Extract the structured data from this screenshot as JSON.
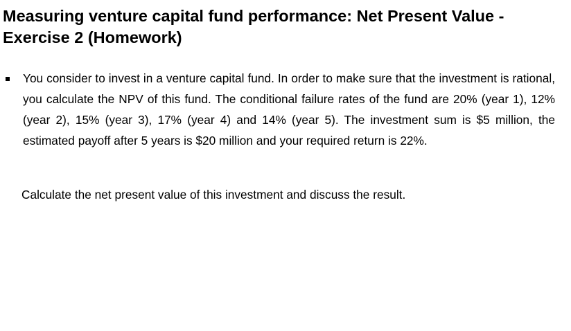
{
  "slide": {
    "title": "Measuring venture capital fund performance: Net Present Value - Exercise 2 (Homework)",
    "bullet_text": "You consider to invest in a venture capital fund. In order to make sure that the investment is rational, you calculate the NPV of this fund. The conditional failure rates of the fund are 20% (year 1), 12% (year 2), 15% (year 3), 17% (year 4) and 14% (year 5). The investment sum is $5 million, the estimated payoff after 5 years is $20 million and your required return is 22%.",
    "question_text": "Calculate the net present value of this investment and discuss the result."
  },
  "icons": {
    "bullet": "square-bullet-icon"
  }
}
